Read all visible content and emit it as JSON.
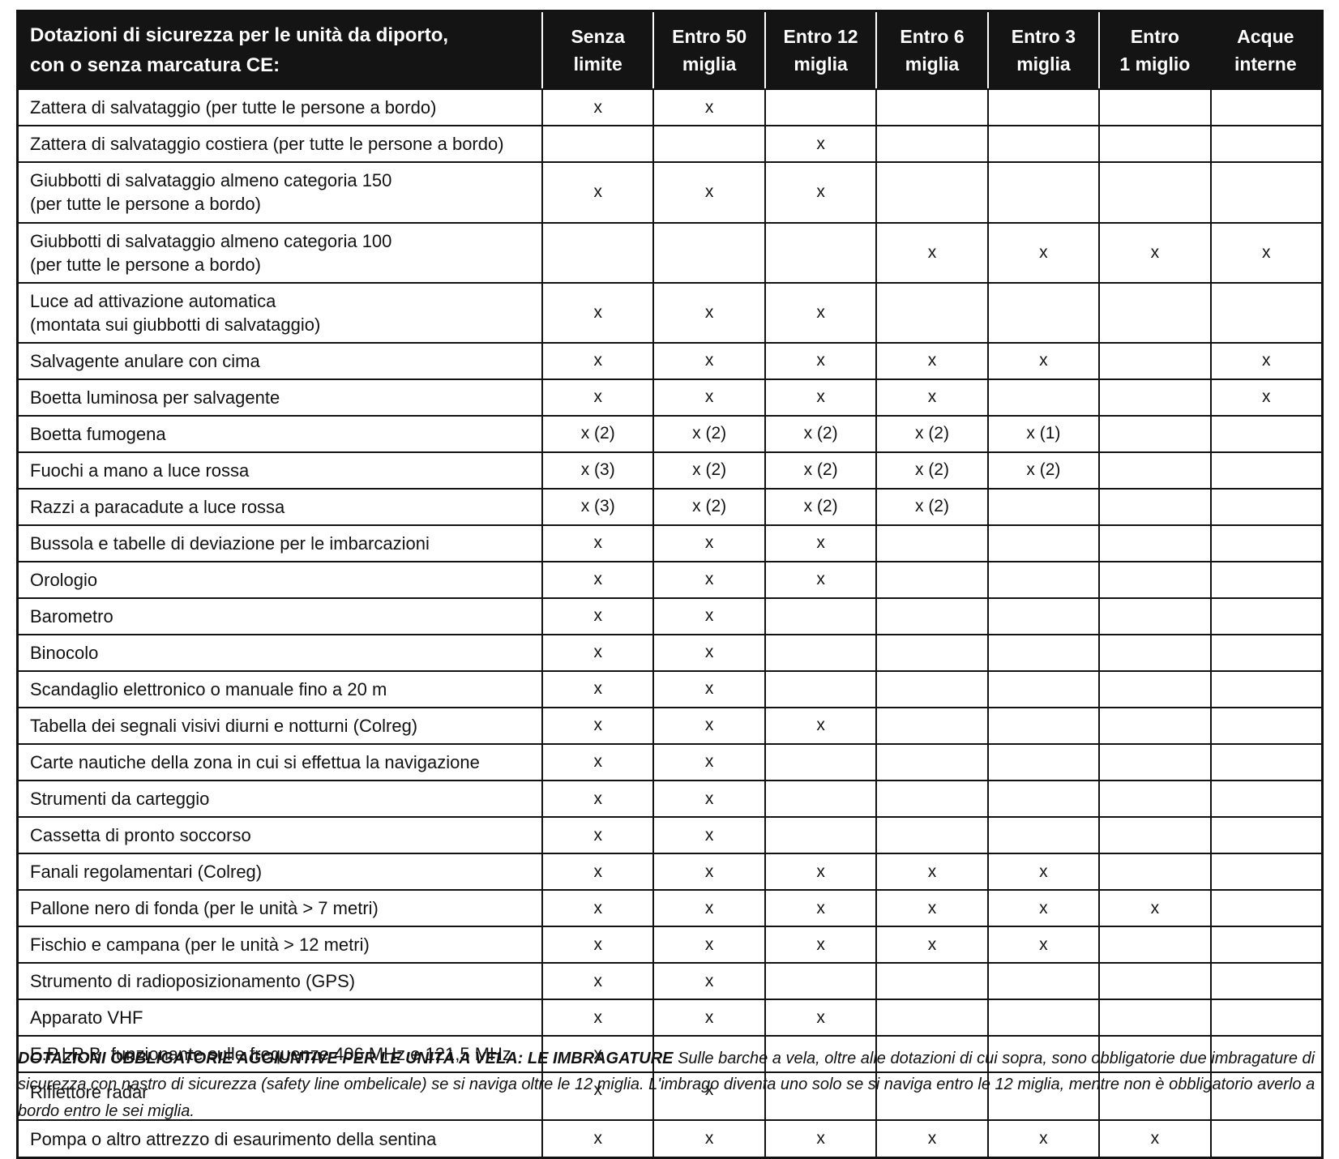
{
  "colors": {
    "header_bg": "#141414",
    "header_text": "#ffffff",
    "border": "#121212",
    "body_text": "#121212"
  },
  "table": {
    "title_line1": "Dotazioni di sicurezza per le unità da diporto,",
    "title_line2": "con o senza marcatura CE:",
    "columns": [
      {
        "l1": "Senza",
        "l2": "limite"
      },
      {
        "l1": "Entro 50",
        "l2": "miglia"
      },
      {
        "l1": "Entro 12",
        "l2": "miglia"
      },
      {
        "l1": "Entro 6",
        "l2": "miglia"
      },
      {
        "l1": "Entro 3",
        "l2": "miglia"
      },
      {
        "l1": "Entro",
        "l2": "1 miglio"
      },
      {
        "l1": "Acque",
        "l2": "interne"
      }
    ],
    "rows": [
      {
        "label": "Zattera di salvataggio  (per tutte le persone a bordo)",
        "marks": [
          "x",
          "x",
          "",
          "",
          "",
          "",
          ""
        ]
      },
      {
        "label": "Zattera di salvataggio costiera  (per tutte le persone a bordo)",
        "marks": [
          "",
          "",
          "x",
          "",
          "",
          "",
          ""
        ]
      },
      {
        "label": "Giubbotti di salvataggio almeno categoria 150",
        "label2": "(per tutte le persone a bordo)",
        "marks": [
          "x",
          "x",
          "x",
          "",
          "",
          "",
          ""
        ]
      },
      {
        "label": "Giubbotti di salvataggio almeno categoria 100",
        "label2": "(per tutte le persone a bordo)",
        "marks": [
          "",
          "",
          "",
          "x",
          "x",
          "x",
          "x"
        ]
      },
      {
        "label": "Luce ad attivazione automatica",
        "label2": "(montata sui giubbotti di salvataggio)",
        "marks": [
          "x",
          "x",
          "x",
          "",
          "",
          "",
          ""
        ]
      },
      {
        "label": "Salvagente anulare con cima",
        "marks": [
          "x",
          "x",
          "x",
          "x",
          "x",
          "",
          "x"
        ]
      },
      {
        "label": "Boetta luminosa per salvagente",
        "marks": [
          "x",
          "x",
          "x",
          "x",
          "",
          "",
          "x"
        ]
      },
      {
        "label": "Boetta fumogena",
        "marks": [
          "x (2)",
          "x (2)",
          "x (2)",
          "x (2)",
          "x (1)",
          "",
          ""
        ]
      },
      {
        "label": "Fuochi a mano a luce rossa",
        "marks": [
          "x (3)",
          "x (2)",
          "x (2)",
          "x (2)",
          "x (2)",
          "",
          ""
        ]
      },
      {
        "label": "Razzi a paracadute a luce rossa",
        "marks": [
          "x (3)",
          "x (2)",
          "x (2)",
          "x (2)",
          "",
          "",
          ""
        ]
      },
      {
        "label": "Bussola e tabelle di deviazione per le imbarcazioni",
        "marks": [
          "x",
          "x",
          "x",
          "",
          "",
          "",
          ""
        ]
      },
      {
        "label": "Orologio",
        "marks": [
          "x",
          "x",
          "x",
          "",
          "",
          "",
          ""
        ]
      },
      {
        "label": "Barometro",
        "marks": [
          "x",
          "x",
          "",
          "",
          "",
          "",
          ""
        ]
      },
      {
        "label": "Binocolo",
        "marks": [
          "x",
          "x",
          "",
          "",
          "",
          "",
          ""
        ]
      },
      {
        "label": "Scandaglio elettronico o manuale fino a 20 m",
        "marks": [
          "x",
          "x",
          "",
          "",
          "",
          "",
          ""
        ]
      },
      {
        "label": "Tabella dei segnali visivi diurni e notturni (Colreg)",
        "marks": [
          "x",
          "x",
          "x",
          "",
          "",
          "",
          ""
        ]
      },
      {
        "label": "Carte nautiche della zona in cui si effettua la navigazione",
        "marks": [
          "x",
          "x",
          "",
          "",
          "",
          "",
          ""
        ]
      },
      {
        "label": "Strumenti da carteggio",
        "marks": [
          "x",
          "x",
          "",
          "",
          "",
          "",
          ""
        ]
      },
      {
        "label": "Cassetta di pronto soccorso",
        "marks": [
          "x",
          "x",
          "",
          "",
          "",
          "",
          ""
        ]
      },
      {
        "label": "Fanali regolamentari (Colreg)",
        "marks": [
          "x",
          "x",
          "x",
          "x",
          "x",
          "",
          ""
        ]
      },
      {
        "label": "Pallone nero di fonda (per le unità > 7 metri)",
        "marks": [
          "x",
          "x",
          "x",
          "x",
          "x",
          "x",
          ""
        ]
      },
      {
        "label": "Fischio e campana (per le unità > 12 metri)",
        "marks": [
          "x",
          "x",
          "x",
          "x",
          "x",
          "",
          ""
        ]
      },
      {
        "label": "Strumento di radioposizionamento (GPS)",
        "marks": [
          "x",
          "x",
          "",
          "",
          "",
          "",
          ""
        ]
      },
      {
        "label": "Apparato VHF",
        "marks": [
          "x",
          "x",
          "x",
          "",
          "",
          "",
          ""
        ]
      },
      {
        "label": "E.P.I.R.B. funzionante sulle frequenze 406 MHz e 121,5 MHz",
        "marks": [
          "x",
          "",
          "",
          "",
          "",
          "",
          ""
        ]
      },
      {
        "label": "Riflettore radar",
        "marks": [
          "x",
          "x",
          "",
          "",
          "",
          "",
          ""
        ]
      },
      {
        "label": "Pompa o altro attrezzo di esaurimento della sentina",
        "marks": [
          "x",
          "x",
          "x",
          "x",
          "x",
          "x",
          ""
        ]
      }
    ]
  },
  "footnote": {
    "bold": "DOTAZIONI OBBLIGATORIE AGGIUNTIVE PER LE UNITÀ A VELA: LE IMBRAGATURE",
    "text": " Sulle barche a vela, oltre alle dotazioni di cui sopra, sono obbligatorie due imbragature di sicurezza con nastro di sicurezza (safety line ombelicale) se si naviga oltre le 12 miglia. L'imbrago diventa uno solo se si naviga entro le 12 miglia, mentre non è obbligatorio averlo a bordo entro le sei miglia."
  }
}
